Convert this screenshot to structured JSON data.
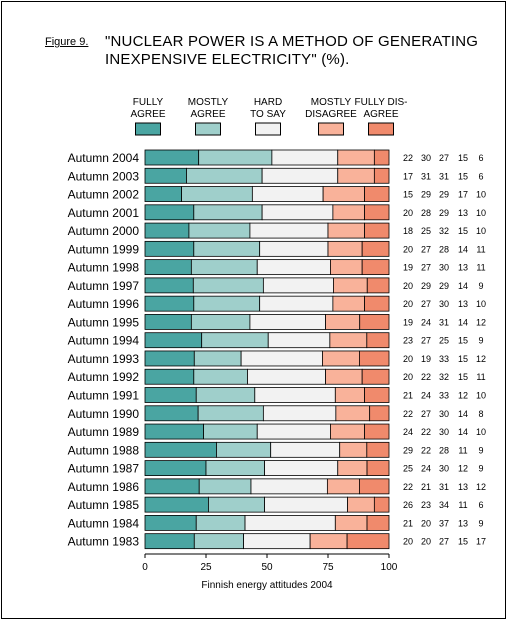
{
  "figure_label": "Figure 9.",
  "title_line1": "\"NUCLEAR POWER IS A METHOD OF GENERATING",
  "title_line2": "INEXPENSIVE ELECTRICITY\" (%).",
  "chart_data": {
    "type": "bar",
    "stacked": true,
    "orientation": "horizontal",
    "title": "\"NUCLEAR POWER IS A METHOD OF GENERATING INEXPENSIVE ELECTRICITY\" (%).",
    "xlabel": "Finnish energy attitudes 2004",
    "xlim": [
      0,
      100
    ],
    "xticks": [
      0,
      25,
      50,
      75,
      100
    ],
    "legend_position": "top",
    "categories": [
      "Autumn 2004",
      "Autumn 2003",
      "Autumn 2002",
      "Autumn 2001",
      "Autumn 2000",
      "Autumn 1999",
      "Autumn 1998",
      "Autumn 1997",
      "Autumn 1996",
      "Autumn 1995",
      "Autumn 1994",
      "Autumn 1993",
      "Autumn 1992",
      "Autumn 1991",
      "Autumn 1990",
      "Autumn 1989",
      "Autumn 1988",
      "Autumn 1987",
      "Autumn 1986",
      "Autumn 1985",
      "Autumn 1984",
      "Autumn 1983"
    ],
    "series": [
      {
        "name": "FULLY AGREE",
        "legend_lines": [
          "FULLY",
          "AGREE"
        ],
        "color": "#4aa5a2",
        "values": [
          22,
          17,
          15,
          20,
          18,
          20,
          19,
          20,
          20,
          19,
          23,
          20,
          20,
          21,
          22,
          24,
          29,
          25,
          22,
          26,
          21,
          20
        ]
      },
      {
        "name": "MOSTLY AGREE",
        "legend_lines": [
          "MOSTLY",
          "AGREE"
        ],
        "color": "#9fcfcb",
        "values": [
          30,
          31,
          29,
          28,
          25,
          27,
          27,
          29,
          27,
          24,
          27,
          19,
          22,
          24,
          27,
          22,
          22,
          24,
          21,
          23,
          20,
          20
        ]
      },
      {
        "name": "HARD TO SAY",
        "legend_lines": [
          "HARD",
          "TO SAY"
        ],
        "color": "#f2f2f2",
        "values": [
          27,
          31,
          29,
          29,
          32,
          28,
          30,
          29,
          30,
          31,
          25,
          33,
          32,
          33,
          30,
          30,
          28,
          30,
          31,
          34,
          37,
          27
        ]
      },
      {
        "name": "MOSTLY DISAGREE",
        "legend_lines": [
          "MOSTLY",
          "DISAGREE"
        ],
        "color": "#f9b29a",
        "values": [
          15,
          15,
          17,
          13,
          15,
          14,
          13,
          14,
          13,
          14,
          15,
          15,
          15,
          12,
          14,
          14,
          11,
          12,
          13,
          11,
          13,
          15
        ]
      },
      {
        "name": "FULLY DISAGREE",
        "legend_lines": [
          "FULLY DIS-",
          "AGREE"
        ],
        "color": "#f08a6c",
        "values": [
          6,
          6,
          10,
          10,
          10,
          11,
          11,
          9,
          10,
          12,
          9,
          12,
          11,
          10,
          8,
          10,
          9,
          9,
          12,
          6,
          9,
          17
        ]
      }
    ]
  }
}
